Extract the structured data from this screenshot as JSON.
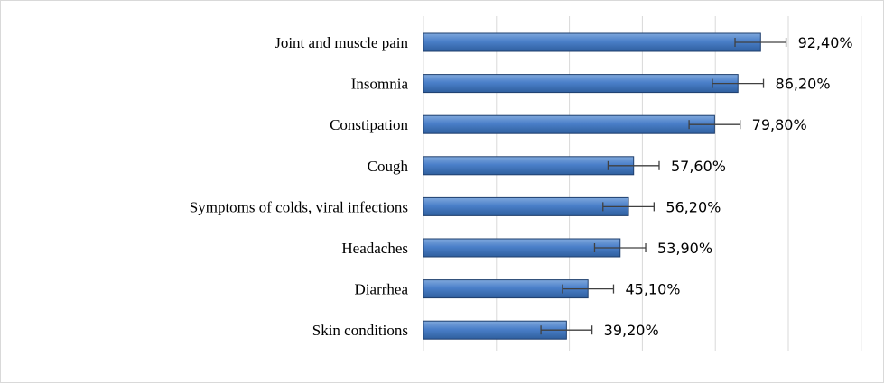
{
  "chart_data": {
    "type": "bar",
    "orientation": "horizontal",
    "categories": [
      "Joint and muscle pain",
      "Insomnia",
      "Constipation",
      "Cough",
      "Symptoms of colds, viral infections",
      "Headaches",
      "Diarrhea",
      "Skin conditions"
    ],
    "values": [
      92.4,
      86.2,
      79.8,
      57.6,
      56.2,
      53.9,
      45.1,
      39.2
    ],
    "value_labels": [
      "92,40%",
      "86,20%",
      "79,80%",
      "57,60%",
      "56,20%",
      "53,90%",
      "45,10%",
      "39,20%"
    ],
    "error_bars": 7,
    "xlim": [
      0,
      120
    ],
    "x_gridlines": [
      0,
      20,
      40,
      60,
      80,
      100,
      120
    ],
    "grid": "vertical",
    "legend": "none",
    "colors": {
      "bar_light": "#7fa8dc",
      "bar_mid": "#4a7fc9",
      "bar_dark": "#2f5f9e",
      "bar_edge": "#1f3f6e",
      "error_bar": "#404040",
      "gridline": "#d9d9d9",
      "frame": "#d9d9d9"
    }
  }
}
